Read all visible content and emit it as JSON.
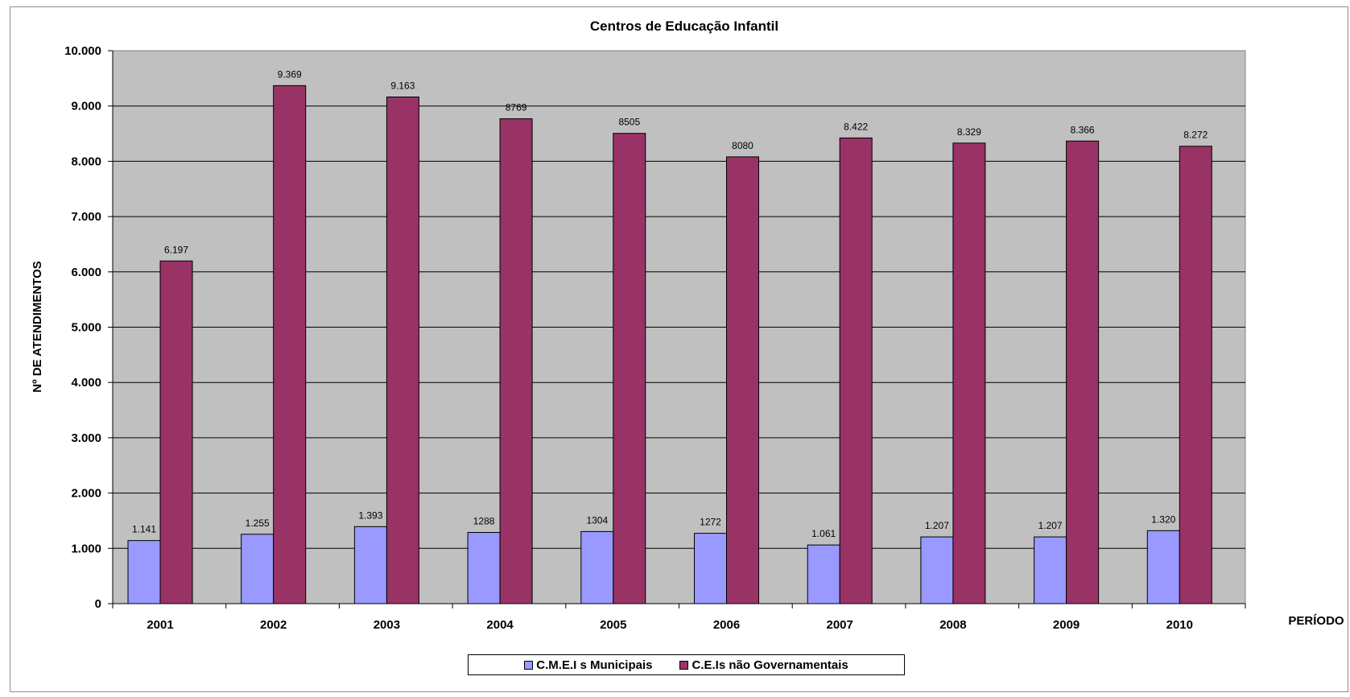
{
  "chart_data": {
    "type": "bar",
    "title": "Centros de Educação Infantil",
    "xlabel": "PERÍODO",
    "ylabel": "Nº DE ATENDIMENTOS",
    "categories": [
      "2001",
      "2002",
      "2003",
      "2004",
      "2005",
      "2006",
      "2007",
      "2008",
      "2009",
      "2010"
    ],
    "ylim": [
      0,
      10000
    ],
    "yticks": [
      0,
      1000,
      2000,
      3000,
      4000,
      5000,
      6000,
      7000,
      8000,
      9000,
      10000
    ],
    "ytick_labels": [
      "0",
      "1.000",
      "2.000",
      "3.000",
      "4.000",
      "5.000",
      "6.000",
      "7.000",
      "8.000",
      "9.000",
      "10.000"
    ],
    "grid": true,
    "legend_position": "bottom",
    "plot_background": "#c0c0c0",
    "series": [
      {
        "name": "C.M.E.I s Municipais",
        "color": "#9999ff",
        "values": [
          1141,
          1255,
          1393,
          1288,
          1304,
          1272,
          1061,
          1207,
          1207,
          1320
        ],
        "labels": [
          "1.141",
          "1.255",
          "1.393",
          "1288",
          "1304",
          "1272",
          "1.061",
          "1.207",
          "1.207",
          "1.320"
        ]
      },
      {
        "name": "C.E.Is não Governamentais",
        "color": "#993366",
        "values": [
          6197,
          9369,
          9163,
          8769,
          8505,
          8080,
          8422,
          8329,
          8366,
          8272
        ],
        "labels": [
          "6.197",
          "9.369",
          "9.163",
          "8769",
          "8505",
          "8080",
          "8.422",
          "8.329",
          "8.366",
          "8.272"
        ]
      }
    ]
  }
}
